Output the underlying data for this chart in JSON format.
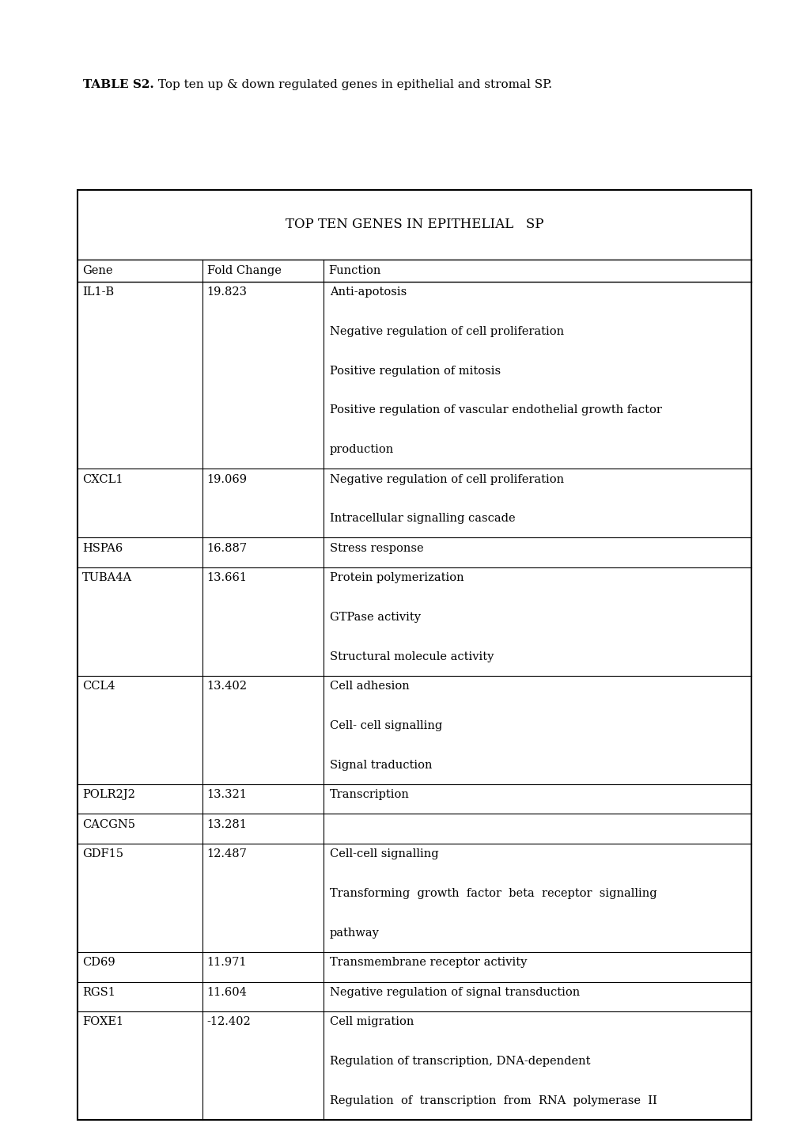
{
  "title_bold": "TABLE S2.",
  "title_rest": " Top ten up & down regulated genes in epithelial and stromal SP.",
  "table_header": "TOP TEN GENES IN EPITHELIAL   SP",
  "col_headers": [
    "Gene",
    "Fold Change",
    "Function"
  ],
  "rows": [
    {
      "gene": "IL1-B",
      "fold": "19.823",
      "functions": [
        "Anti-apotosis",
        "",
        "Negative regulation of cell proliferation",
        "",
        "Positive regulation of mitosis",
        "",
        "Positive regulation of vascular endothelial growth factor",
        "",
        "production"
      ]
    },
    {
      "gene": "CXCL1",
      "fold": "19.069",
      "functions": [
        "Negative regulation of cell proliferation",
        "",
        "Intracellular signalling cascade"
      ]
    },
    {
      "gene": "HSPA6",
      "fold": "16.887",
      "functions": [
        "Stress response"
      ]
    },
    {
      "gene": "TUBA4A",
      "fold": "13.661",
      "functions": [
        "Protein polymerization",
        "",
        "GTPase activity",
        "",
        "Structural molecule activity"
      ]
    },
    {
      "gene": "CCL4",
      "fold": "13.402",
      "functions": [
        "Cell adhesion",
        "",
        "Cell- cell signalling",
        "",
        "Signal traduction"
      ]
    },
    {
      "gene": "POLR2J2",
      "fold": "13.321",
      "functions": [
        "Transcription"
      ]
    },
    {
      "gene": "CACGN5",
      "fold": "13.281",
      "functions": [
        ""
      ]
    },
    {
      "gene": "GDF15",
      "fold": "12.487",
      "functions": [
        "Cell-cell signalling",
        "",
        "Transforming  growth  factor  beta  receptor  signalling",
        "",
        "pathway"
      ]
    },
    {
      "gene": "CD69",
      "fold": "11.971",
      "functions": [
        "Transmembrane receptor activity"
      ]
    },
    {
      "gene": "RGS1",
      "fold": "11.604",
      "functions": [
        "Negative regulation of signal transduction"
      ]
    },
    {
      "gene": "FOXE1",
      "fold": "-12.402",
      "functions": [
        "Cell migration",
        "",
        "Regulation of transcription, DNA-dependent",
        "",
        "Regulation  of  transcription  from  RNA  polymerase  II"
      ]
    }
  ],
  "bg_color": "#ffffff",
  "text_color": "#000000",
  "border_color": "#000000",
  "fig_width": 10.2,
  "fig_height": 14.43,
  "dpi": 100
}
